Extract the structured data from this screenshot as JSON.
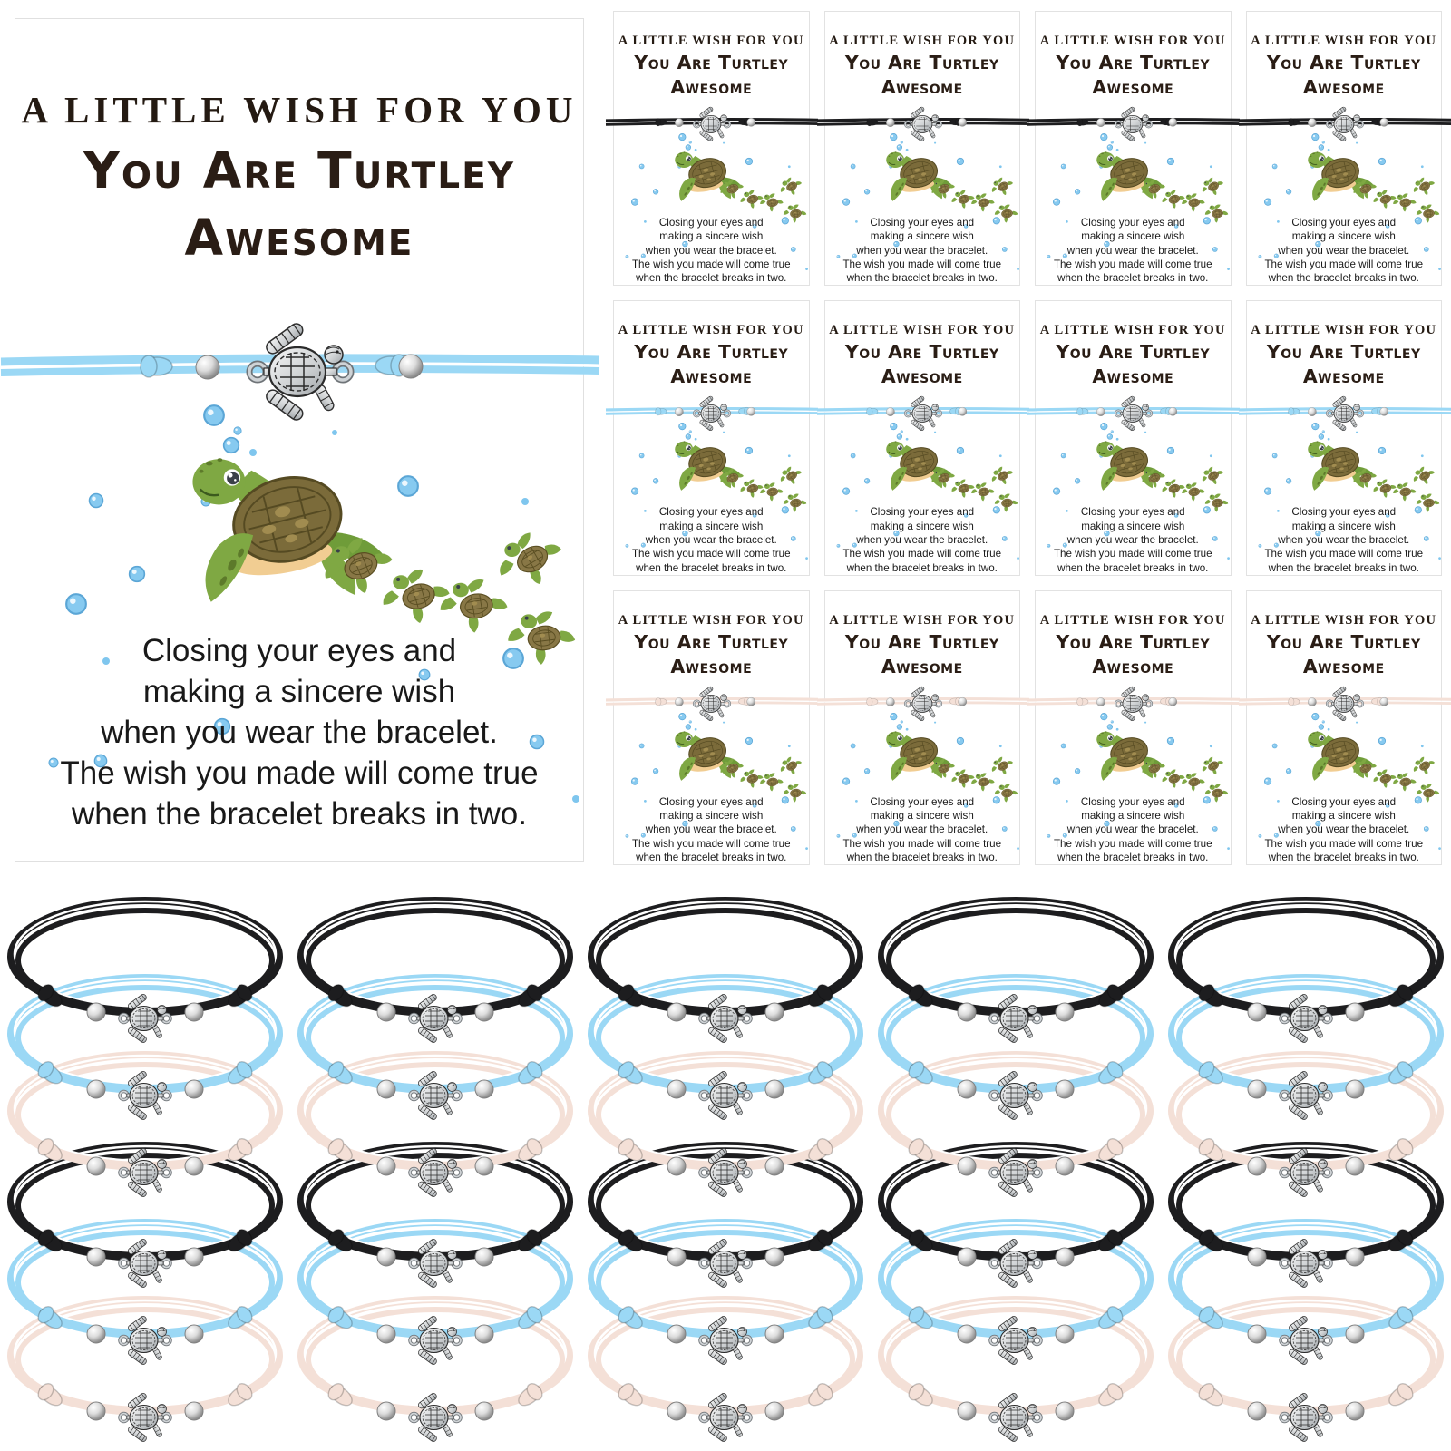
{
  "product_card": {
    "heading": "A LITTLE WISH FOR YOU",
    "title_line1": "You Are Turtley",
    "title_line2": "Awesome",
    "wish_lines": [
      "Closing your eyes and",
      "making a sincere wish",
      "when you wear the bracelet.",
      "The wish you made will come true",
      "when the bracelet breaks in two."
    ]
  },
  "colors": {
    "cord_black": "#1d1d1f",
    "cord_blue": "#9bd8f5",
    "cord_pink": "#f4e0d7",
    "heading_text": "#241a12",
    "body_text": "#191919",
    "bubble_blue": "#87caf0",
    "turtle_green": "#7fa843",
    "turtle_shell": "#7b6b3a",
    "charm_silver": "#cfd3d6"
  },
  "mini_card_grid": {
    "columns": 4,
    "rows": [
      {
        "cord_color": "#1d1d1f"
      },
      {
        "cord_color": "#9bd8f5"
      },
      {
        "cord_color": "#f4e0d7"
      }
    ]
  },
  "bracelet_display": {
    "rows": 2,
    "columns": 5,
    "stack_colors": [
      "#1d1d1f",
      "#9bd8f5",
      "#f4e0d7"
    ]
  },
  "icons": {
    "turtle_charm": "turtle-charm-icon",
    "bead": "silver-bead-icon",
    "bubble": "bubble-icon",
    "mama_turtle": "mama-turtle-icon",
    "baby_turtle": "baby-turtle-icon",
    "cord_knot": "cord-knot"
  }
}
